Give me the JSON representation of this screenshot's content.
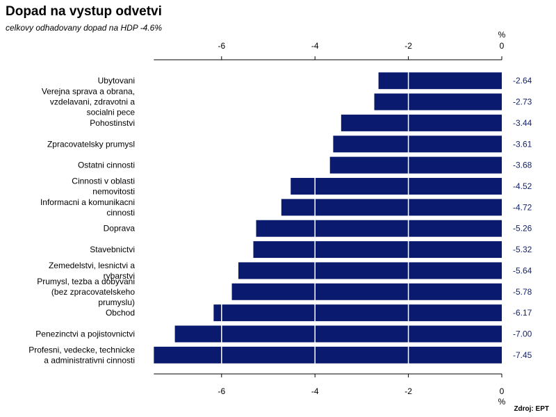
{
  "page": {
    "title": "Dopad na vystup odvetvi",
    "subtitle": "celkovy odhadovany dopad na HDP -4.6%",
    "source": "Zdroj: EPT"
  },
  "chart_data": {
    "type": "bar",
    "orientation": "horizontal",
    "title": "Dopad na vystup odvetvi",
    "subtitle": "celkovy odhadovany dopad na HDP -4.6%",
    "xlabel": "%",
    "xlim": [
      -7.45,
      0
    ],
    "xticks": [
      -6,
      -4,
      -2,
      0
    ],
    "xtick_labels": [
      "-6",
      "-4",
      "-2",
      "0"
    ],
    "axis_position": "top and bottom",
    "grid": true,
    "bar_color": "#0a1a6e",
    "value_label_color": "#0f1f6b",
    "categories": [
      "Ubytovani",
      "Verejna sprava a obrana, vzdelavani, zdravotni a socialni pece",
      "Pohostinstvi",
      "Zpracovatelsky prumysl",
      "Ostatni cinnosti",
      "Cinnosti v oblasti nemovitosti",
      "Informacni a komunikacni cinnosti",
      "Doprava",
      "Stavebnictvi",
      "Zemedelstvi, lesnictvi a rybarstvi",
      "Prumysl, tezba a dobyvani (bez zpracovatelskeho prumyslu)",
      "Obchod",
      "Penezinctvi a pojistovnictvi",
      "Profesni, vedecke, technicke a administrativni cinnosti"
    ],
    "category_lines": [
      [
        "Ubytovani"
      ],
      [
        "Verejna sprava a obrana,",
        "vzdelavani, zdravotni a",
        "socialni pece"
      ],
      [
        "Pohostinstvi"
      ],
      [
        "Zpracovatelsky prumysl"
      ],
      [
        "Ostatni cinnosti"
      ],
      [
        "Cinnosti v oblasti",
        "nemovitosti"
      ],
      [
        "Informacni a komunikacni",
        "cinnosti"
      ],
      [
        "Doprava"
      ],
      [
        "Stavebnictvi"
      ],
      [
        "Zemedelstvi, lesnictvi a",
        "rybarstvi"
      ],
      [
        "Prumysl, tezba a dobyvani",
        "(bez zpracovatelskeho",
        "prumyslu)"
      ],
      [
        "Obchod"
      ],
      [
        "Penezinctvi a pojistovnictvi"
      ],
      [
        "Profesni, vedecke, technicke",
        "a administrativni cinnosti"
      ]
    ],
    "values": [
      -2.64,
      -2.73,
      -3.44,
      -3.61,
      -3.68,
      -4.52,
      -4.72,
      -5.26,
      -5.32,
      -5.64,
      -5.78,
      -6.17,
      -7.0,
      -7.45
    ],
    "value_labels": [
      "-2.64",
      "-2.73",
      "-3.44",
      "-3.61",
      "-3.68",
      "-4.52",
      "-4.72",
      "-5.26",
      "-5.32",
      "-5.64",
      "-5.78",
      "-6.17",
      "-7.00",
      "-7.45"
    ]
  }
}
